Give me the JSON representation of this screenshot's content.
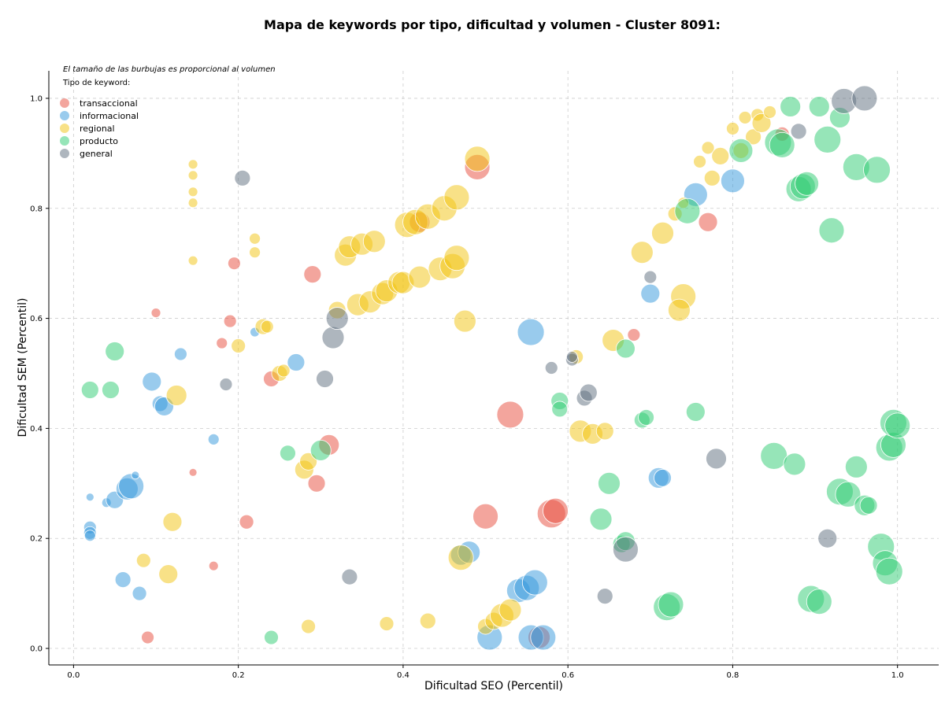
{
  "chart_data": {
    "type": "scatter",
    "title": "Mapa de keywords por tipo, dificultad y volumen - Cluster 8091:",
    "xlabel": "Dificultad SEO (Percentil)",
    "ylabel": "Dificultad SEM (Percentil)",
    "note": "El tamaño de las burbujas es proporcional al volumen",
    "legend_title": "Tipo de keyword:",
    "legend_position": "top-left",
    "xlim": [
      -0.03,
      1.05
    ],
    "ylim": [
      -0.03,
      1.05
    ],
    "xticks": [
      "0.0",
      "0.2",
      "0.4",
      "0.6",
      "0.8",
      "1.0"
    ],
    "yticks": [
      "0.0",
      "0.2",
      "0.4",
      "0.6",
      "0.8",
      "1.0"
    ],
    "grid": true,
    "series": [
      {
        "name": "transaccional",
        "color": "#e74c3c",
        "points": [
          [
            0.09,
            0.02,
            8
          ],
          [
            0.1,
            0.61,
            6
          ],
          [
            0.145,
            0.32,
            5
          ],
          [
            0.17,
            0.15,
            6
          ],
          [
            0.18,
            0.555,
            7
          ],
          [
            0.19,
            0.595,
            8
          ],
          [
            0.195,
            0.7,
            8
          ],
          [
            0.21,
            0.23,
            9
          ],
          [
            0.24,
            0.49,
            10
          ],
          [
            0.29,
            0.68,
            11
          ],
          [
            0.295,
            0.3,
            11
          ],
          [
            0.31,
            0.37,
            13
          ],
          [
            0.42,
            0.775,
            13
          ],
          [
            0.49,
            0.875,
            16
          ],
          [
            0.5,
            0.24,
            16
          ],
          [
            0.53,
            0.425,
            17
          ],
          [
            0.58,
            0.245,
            18
          ],
          [
            0.585,
            0.25,
            16
          ],
          [
            0.565,
            0.02,
            14
          ],
          [
            0.68,
            0.57,
            8
          ],
          [
            0.77,
            0.775,
            12
          ],
          [
            0.86,
            0.935,
            9
          ]
        ]
      },
      {
        "name": "informacional",
        "color": "#3498db",
        "points": [
          [
            0.02,
            0.275,
            5
          ],
          [
            0.02,
            0.22,
            8
          ],
          [
            0.02,
            0.21,
            8
          ],
          [
            0.02,
            0.205,
            7
          ],
          [
            0.04,
            0.265,
            6
          ],
          [
            0.05,
            0.27,
            11
          ],
          [
            0.06,
            0.125,
            10
          ],
          [
            0.065,
            0.29,
            14
          ],
          [
            0.07,
            0.295,
            16
          ],
          [
            0.075,
            0.315,
            5
          ],
          [
            0.08,
            0.1,
            9
          ],
          [
            0.095,
            0.485,
            12
          ],
          [
            0.105,
            0.445,
            10
          ],
          [
            0.11,
            0.44,
            12
          ],
          [
            0.13,
            0.535,
            8
          ],
          [
            0.17,
            0.38,
            7
          ],
          [
            0.22,
            0.575,
            6
          ],
          [
            0.27,
            0.52,
            11
          ],
          [
            0.47,
            0.17,
            13
          ],
          [
            0.48,
            0.175,
            14
          ],
          [
            0.505,
            0.02,
            16
          ],
          [
            0.54,
            0.105,
            15
          ],
          [
            0.55,
            0.11,
            16
          ],
          [
            0.56,
            0.12,
            16
          ],
          [
            0.555,
            0.02,
            16
          ],
          [
            0.57,
            0.02,
            16
          ],
          [
            0.555,
            0.575,
            17
          ],
          [
            0.7,
            0.645,
            12
          ],
          [
            0.71,
            0.31,
            13
          ],
          [
            0.715,
            0.31,
            11
          ],
          [
            0.755,
            0.825,
            15
          ],
          [
            0.8,
            0.85,
            15
          ]
        ]
      },
      {
        "name": "regional",
        "color": "#f1c40f",
        "points": [
          [
            0.085,
            0.16,
            9
          ],
          [
            0.115,
            0.135,
            12
          ],
          [
            0.12,
            0.23,
            12
          ],
          [
            0.125,
            0.46,
            13
          ],
          [
            0.145,
            0.88,
            6
          ],
          [
            0.145,
            0.86,
            6
          ],
          [
            0.145,
            0.83,
            6
          ],
          [
            0.145,
            0.81,
            6
          ],
          [
            0.145,
            0.705,
            6
          ],
          [
            0.2,
            0.55,
            9
          ],
          [
            0.22,
            0.745,
            7
          ],
          [
            0.22,
            0.72,
            7
          ],
          [
            0.23,
            0.585,
            10
          ],
          [
            0.235,
            0.585,
            8
          ],
          [
            0.25,
            0.5,
            10
          ],
          [
            0.255,
            0.505,
            8
          ],
          [
            0.28,
            0.325,
            12
          ],
          [
            0.285,
            0.34,
            11
          ],
          [
            0.285,
            0.04,
            9
          ],
          [
            0.32,
            0.615,
            11
          ],
          [
            0.33,
            0.715,
            14
          ],
          [
            0.335,
            0.73,
            14
          ],
          [
            0.345,
            0.625,
            14
          ],
          [
            0.35,
            0.735,
            14
          ],
          [
            0.36,
            0.63,
            14
          ],
          [
            0.365,
            0.74,
            14
          ],
          [
            0.375,
            0.645,
            14
          ],
          [
            0.38,
            0.65,
            14
          ],
          [
            0.38,
            0.045,
            9
          ],
          [
            0.395,
            0.665,
            14
          ],
          [
            0.4,
            0.665,
            14
          ],
          [
            0.405,
            0.77,
            16
          ],
          [
            0.415,
            0.775,
            16
          ],
          [
            0.42,
            0.675,
            14
          ],
          [
            0.43,
            0.785,
            16
          ],
          [
            0.43,
            0.05,
            10
          ],
          [
            0.445,
            0.69,
            15
          ],
          [
            0.45,
            0.8,
            16
          ],
          [
            0.46,
            0.695,
            16
          ],
          [
            0.465,
            0.82,
            16
          ],
          [
            0.465,
            0.71,
            16
          ],
          [
            0.47,
            0.165,
            16
          ],
          [
            0.475,
            0.595,
            14
          ],
          [
            0.49,
            0.89,
            16
          ],
          [
            0.5,
            0.04,
            10
          ],
          [
            0.51,
            0.05,
            11
          ],
          [
            0.52,
            0.06,
            15
          ],
          [
            0.53,
            0.07,
            14
          ],
          [
            0.61,
            0.53,
            9
          ],
          [
            0.615,
            0.395,
            14
          ],
          [
            0.63,
            0.39,
            13
          ],
          [
            0.645,
            0.395,
            11
          ],
          [
            0.655,
            0.56,
            14
          ],
          [
            0.69,
            0.72,
            14
          ],
          [
            0.715,
            0.755,
            14
          ],
          [
            0.73,
            0.79,
            9
          ],
          [
            0.74,
            0.64,
            16
          ],
          [
            0.735,
            0.615,
            14
          ],
          [
            0.74,
            0.81,
            7
          ],
          [
            0.77,
            0.91,
            8
          ],
          [
            0.76,
            0.885,
            8
          ],
          [
            0.775,
            0.855,
            10
          ],
          [
            0.785,
            0.895,
            11
          ],
          [
            0.8,
            0.945,
            8
          ],
          [
            0.81,
            0.905,
            10
          ],
          [
            0.815,
            0.965,
            8
          ],
          [
            0.83,
            0.97,
            8
          ],
          [
            0.825,
            0.93,
            10
          ],
          [
            0.835,
            0.955,
            12
          ],
          [
            0.845,
            0.975,
            8
          ]
        ]
      },
      {
        "name": "producto",
        "color": "#2ecc71",
        "points": [
          [
            0.02,
            0.47,
            11
          ],
          [
            0.045,
            0.47,
            11
          ],
          [
            0.05,
            0.54,
            12
          ],
          [
            0.24,
            0.02,
            9
          ],
          [
            0.26,
            0.355,
            10
          ],
          [
            0.3,
            0.36,
            13
          ],
          [
            0.59,
            0.45,
            11
          ],
          [
            0.59,
            0.435,
            10
          ],
          [
            0.64,
            0.235,
            14
          ],
          [
            0.65,
            0.3,
            14
          ],
          [
            0.665,
            0.19,
            11
          ],
          [
            0.67,
            0.195,
            12
          ],
          [
            0.67,
            0.545,
            12
          ],
          [
            0.69,
            0.415,
            10
          ],
          [
            0.695,
            0.42,
            10
          ],
          [
            0.72,
            0.075,
            17
          ],
          [
            0.725,
            0.08,
            16
          ],
          [
            0.755,
            0.43,
            12
          ],
          [
            0.745,
            0.795,
            16
          ],
          [
            0.81,
            0.905,
            15
          ],
          [
            0.85,
            0.35,
            17
          ],
          [
            0.855,
            0.92,
            17
          ],
          [
            0.86,
            0.915,
            16
          ],
          [
            0.875,
            0.335,
            14
          ],
          [
            0.87,
            0.985,
            13
          ],
          [
            0.88,
            0.835,
            16
          ],
          [
            0.885,
            0.84,
            16
          ],
          [
            0.89,
            0.845,
            15
          ],
          [
            0.895,
            0.09,
            17
          ],
          [
            0.905,
            0.085,
            16
          ],
          [
            0.905,
            0.985,
            13
          ],
          [
            0.915,
            0.925,
            17
          ],
          [
            0.92,
            0.76,
            16
          ],
          [
            0.93,
            0.965,
            13
          ],
          [
            0.93,
            0.285,
            17
          ],
          [
            0.94,
            0.28,
            16
          ],
          [
            0.95,
            0.33,
            14
          ],
          [
            0.95,
            0.875,
            17
          ],
          [
            0.96,
            0.26,
            13
          ],
          [
            0.965,
            0.26,
            11
          ],
          [
            0.975,
            0.87,
            17
          ],
          [
            0.98,
            0.185,
            17
          ],
          [
            0.985,
            0.155,
            16
          ],
          [
            0.99,
            0.14,
            17
          ],
          [
            0.99,
            0.365,
            17
          ],
          [
            0.995,
            0.37,
            16
          ],
          [
            0.995,
            0.41,
            17
          ],
          [
            1.0,
            0.405,
            16
          ]
        ]
      },
      {
        "name": "general",
        "color": "#5d6d7e",
        "points": [
          [
            0.185,
            0.48,
            8
          ],
          [
            0.205,
            0.855,
            10
          ],
          [
            0.305,
            0.49,
            11
          ],
          [
            0.315,
            0.565,
            14
          ],
          [
            0.32,
            0.6,
            14
          ],
          [
            0.335,
            0.13,
            10
          ],
          [
            0.58,
            0.51,
            8
          ],
          [
            0.605,
            0.525,
            8
          ],
          [
            0.605,
            0.53,
            7
          ],
          [
            0.62,
            0.455,
            10
          ],
          [
            0.625,
            0.465,
            11
          ],
          [
            0.645,
            0.095,
            10
          ],
          [
            0.67,
            0.18,
            16
          ],
          [
            0.7,
            0.675,
            8
          ],
          [
            0.78,
            0.345,
            13
          ],
          [
            0.88,
            0.94,
            10
          ],
          [
            0.915,
            0.2,
            12
          ],
          [
            0.935,
            0.995,
            16
          ],
          [
            0.96,
            1.0,
            16
          ]
        ]
      }
    ]
  }
}
